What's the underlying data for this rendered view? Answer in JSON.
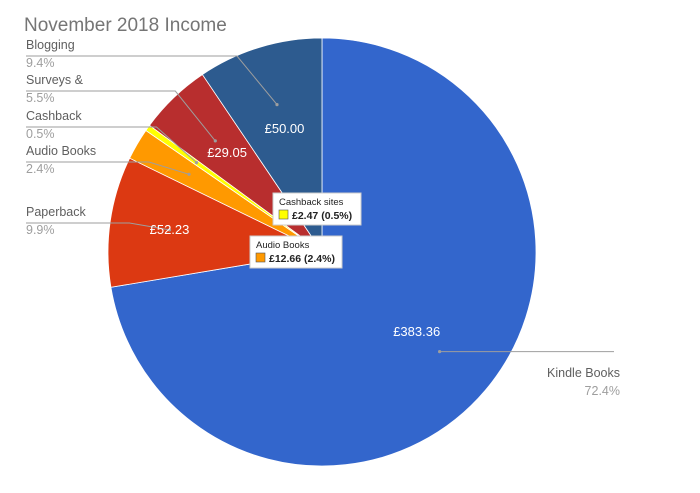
{
  "chart_data": {
    "type": "pie",
    "title": "November 2018 Income",
    "start_angle_deg": 0,
    "direction": "clockwise",
    "slices": [
      {
        "name": "Kindle Books",
        "value": 383.36,
        "value_label": "£383.36",
        "percent_label": "72.4%",
        "color": "#3366cc"
      },
      {
        "name": "Paperback",
        "value": 52.23,
        "value_label": "£52.23",
        "percent_label": "9.9%",
        "color": "#dc3912"
      },
      {
        "name": "Audio Books",
        "value": 12.66,
        "value_label": "",
        "percent_label": "2.4%",
        "color": "#ff9900"
      },
      {
        "name": "Cashback",
        "value": 2.47,
        "value_label": "",
        "percent_label": "0.5%",
        "color": "#ffff00"
      },
      {
        "name": "Surveys &",
        "value": 29.05,
        "value_label": "£29.05",
        "percent_label": "5.5%",
        "color": "#b82e2e"
      },
      {
        "name": "Blogging",
        "value": 50.0,
        "value_label": "£50.00",
        "percent_label": "9.4%",
        "color": "#2d5b8f"
      }
    ],
    "tooltips": [
      {
        "title": "Cashback sites",
        "value": "£2.47 (0.5%)",
        "color": "#ffff00"
      },
      {
        "title": "Audio Books",
        "value": "£12.66 (2.4%)",
        "color": "#ff9900"
      }
    ]
  }
}
